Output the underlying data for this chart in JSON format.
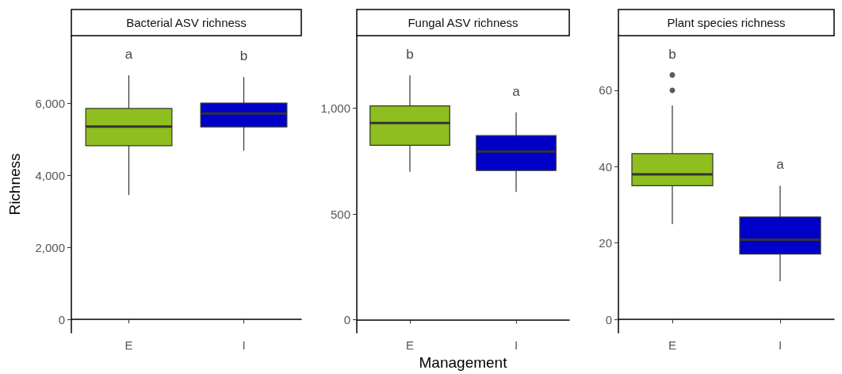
{
  "chart_data": [
    {
      "type": "box",
      "title": "Bacterial ASV richness",
      "ylabel": "Richness",
      "categories": [
        "E",
        "I"
      ],
      "colors": [
        "#8fbe1f",
        "#0000c8"
      ],
      "boxes": [
        {
          "low": 3450,
          "q1": 4820,
          "median": 5350,
          "q3": 5850,
          "high": 6770
        },
        {
          "low": 4680,
          "q1": 5340,
          "median": 5710,
          "q3": 6000,
          "high": 6720
        }
      ],
      "ylim": [
        -370,
        7870
      ],
      "yticks": [
        0,
        {
          "value": 2000,
          "label": "2,000"
        },
        {
          "value": 4000,
          "label": "4,000"
        },
        {
          "value": 6000,
          "label": "6,000"
        }
      ],
      "grid": false,
      "annotations": [
        "a",
        "b"
      ]
    },
    {
      "type": "box",
      "title": "Fungal ASV richness",
      "xlabel": "Management",
      "categories": [
        "E",
        "I"
      ],
      "colors": [
        "#8fbe1f",
        "#0000c8"
      ],
      "boxes": [
        {
          "low": 700,
          "q1": 825,
          "median": 931,
          "q3": 1012,
          "high": 1156
        },
        {
          "low": 604,
          "q1": 706,
          "median": 796,
          "q3": 871,
          "high": 981
        }
      ],
      "ylim": [
        -62,
        1344
      ],
      "yticks": [
        0,
        500,
        {
          "value": 1000,
          "label": "1,000"
        }
      ],
      "grid": false,
      "annotations": [
        "b",
        "a"
      ]
    },
    {
      "type": "box",
      "title": "Plant species richness",
      "categories": [
        "E",
        "I"
      ],
      "colors": [
        "#8fbe1f",
        "#0000c8"
      ],
      "boxes": [
        {
          "low": 25,
          "q1": 35,
          "median": 38,
          "q3": 43.4,
          "high": 56,
          "outliers": [
            60,
            64
          ]
        },
        {
          "low": 10,
          "q1": 17.1,
          "median": 20.9,
          "q3": 26.8,
          "high": 35
        }
      ],
      "ylim": [
        -3.5,
        74.3
      ],
      "yticks": [
        0,
        20,
        40,
        60
      ],
      "grid": false,
      "annotations": [
        "b",
        "a"
      ]
    }
  ]
}
